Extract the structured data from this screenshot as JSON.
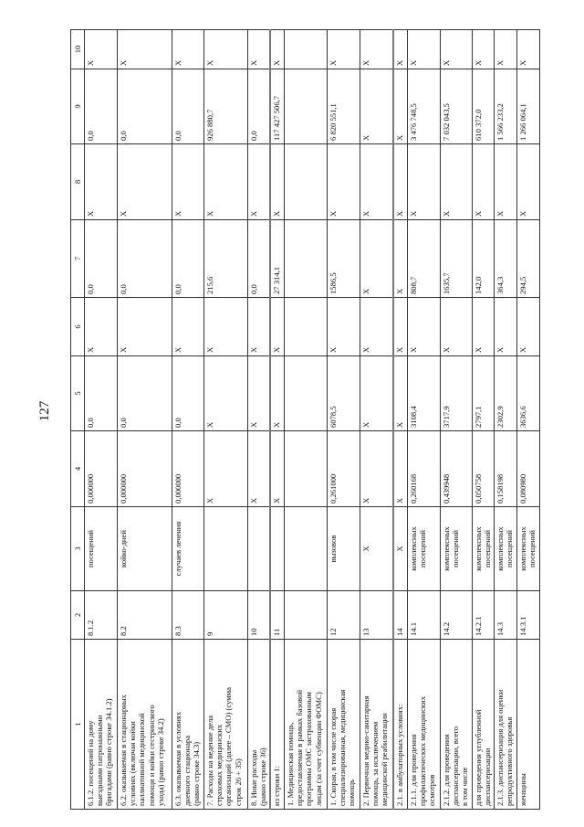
{
  "page_number": "127",
  "table": {
    "header": [
      "1",
      "2",
      "3",
      "4",
      "5",
      "6",
      "7",
      "8",
      "9",
      "10"
    ],
    "rows": [
      [
        "6.1.2. посещений на дому\nвыездными патронажными\nбригадами (равно строке 34.1.2)",
        "8.1.2",
        "посещений",
        "0,000000",
        "0,0",
        "X",
        "0,0",
        "X",
        "0,0",
        "X"
      ],
      [
        "6.2. оказываемая в стационарных\nусловиях (включая койки\nпаллиативной медицинской\nпомощи и койки сестринского\nухода) (равно строке 34.2)",
        "8.2",
        "койко-дней",
        "0,000000",
        "0,0",
        "X",
        "0,0",
        "X",
        "0,0",
        "X"
      ],
      [
        "6.3. оказываемая в условиях\nдневного стационара\n(равно строке 34.3)",
        "8.3",
        "случаев лечения",
        "0,000000",
        "0,0",
        "X",
        "0,0",
        "X",
        "0,0",
        "X"
      ],
      [
        "7. Расходы на ведение дела\nстраховых медицинских\nорганизаций (далее – СМО) (сумма\nстрок 26 + 35)",
        "9",
        "",
        "X",
        "X",
        "X",
        "215,6",
        "X",
        "926 880,7",
        "X"
      ],
      [
        "8. Иные расходы\n(равно строке 36)",
        "10",
        "",
        "X",
        "X",
        "X",
        "0,0",
        "X",
        "0,0",
        "X"
      ],
      [
        "из строки 1:",
        "11",
        "",
        "X",
        "X",
        "X",
        "27 314,1",
        "X",
        "117 427 506,7",
        "X"
      ],
      [
        "1. Медицинская помощь,\nпредоставляемая в рамках базовой\nпрограммы ОМС застрахованным\nлицам (за счет субвенции ФОМС)",
        "",
        "",
        "",
        "",
        "",
        "",
        "",
        "",
        ""
      ],
      [
        "1. Скорая, в том числе скорая\nспециализированная, медицинская\nпомощь",
        "12",
        "вызовов",
        "0,261000",
        "6078,5",
        "X",
        "1586,5",
        "X",
        "6 820 551,1",
        "X"
      ],
      [
        "2. Первичная медико-санитарная\nпомощь, за исключением\nмедицинской реабилитации",
        "13",
        "X",
        "X",
        "X",
        "X",
        "X",
        "X",
        "X",
        "X"
      ],
      [
        "2.1. в амбулаторных условиях:",
        "14",
        "X",
        "X",
        "X",
        "X",
        "X",
        "X",
        "X",
        "X"
      ],
      [
        "2.1.1. для проведения\nпрофилактических медицинских\nосмотров",
        "14.1",
        "комплексных\nпосещений",
        "0,260168",
        "3108,4",
        "X",
        "808,7",
        "X",
        "3 476 748,5",
        "X"
      ],
      [
        "2.1.2. для проведения\nдиспансеризации, всего\nв том числе",
        "14.2",
        "комплексных\nпосещений",
        "0,439948",
        "3717,9",
        "X",
        "1635,7",
        "X",
        "7 032 043,5",
        "X"
      ],
      [
        "для проведения углубленной\nдиспансеризации",
        "14.2.1",
        "комплексных\nпосещений",
        "0,050758",
        "2797,1",
        "X",
        "142,0",
        "X",
        "610 372,0",
        "X"
      ],
      [
        "2.1.3. диспансеризация для оценки\nрепродуктивного здоровья",
        "14.3",
        "комплексных\nпосещений",
        "0,158198",
        "2302,9",
        "X",
        "364,3",
        "X",
        "1 566 233,2",
        "X"
      ],
      [
        "женщины",
        "14.3.1",
        "комплексных\nпосещений",
        "0,080980",
        "3636,6",
        "X",
        "294,5",
        "X",
        "1 266 064,1",
        "X"
      ]
    ]
  }
}
